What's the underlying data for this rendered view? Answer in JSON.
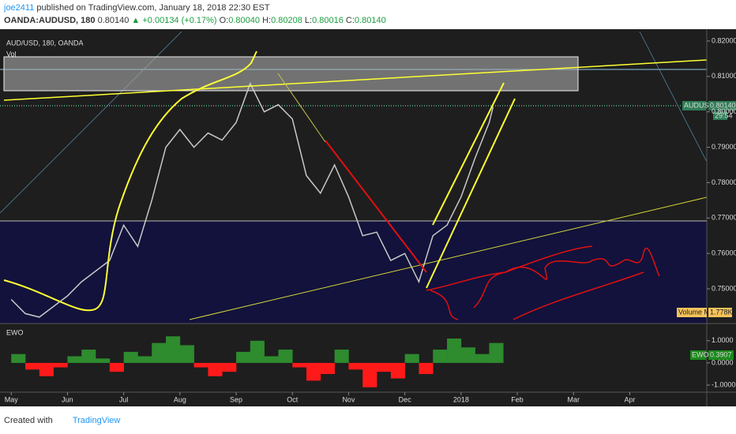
{
  "header": {
    "author": "joe2411",
    "published": "published on TradingView.com, January 18, 2018 22:30 EST",
    "symbol": "OANDA:AUDUSD, 180",
    "last": "0.80140",
    "change": "▲ +0.00134 (+0.17%)",
    "open_label": "O:",
    "open": "0.80040",
    "high_label": "H:",
    "high": "0.80208",
    "low_label": "L:",
    "low": "0.80016",
    "close_label": "C:",
    "close": "0.80140"
  },
  "footer": {
    "created": "Created with",
    "brand": "TradingView"
  },
  "chart_data": [
    {
      "type": "line",
      "title": "AUD/USD, 180, OANDA",
      "subtitle": "Vol",
      "x": [
        0,
        0.25,
        0.5,
        0.75,
        1,
        1.25,
        1.5,
        1.75,
        2,
        2.25,
        2.5,
        2.75,
        3,
        3.25,
        3.5,
        3.75,
        4,
        4.25,
        4.5,
        4.75,
        5,
        5.25,
        5.5,
        5.75,
        6,
        6.25,
        6.5,
        6.75,
        7,
        7.25,
        7.5,
        7.75,
        8,
        8.25,
        8.5,
        8.57
      ],
      "series": [
        {
          "name": "AUDUSD",
          "color": "#c8c8c8",
          "values": [
            0.747,
            0.743,
            0.742,
            0.745,
            0.748,
            0.752,
            0.755,
            0.758,
            0.768,
            0.762,
            0.775,
            0.79,
            0.795,
            0.79,
            0.794,
            0.792,
            0.797,
            0.808,
            0.8,
            0.802,
            0.798,
            0.782,
            0.777,
            0.785,
            0.776,
            0.765,
            0.766,
            0.758,
            0.76,
            0.752,
            0.765,
            0.768,
            0.776,
            0.787,
            0.797,
            0.8014
          ]
        }
      ],
      "last_label": "0.80140",
      "countdown": "29:54",
      "volume_ma_label": "Volume MA",
      "volume_ma": "1.778K",
      "xlim": [
        -0.2,
        12.37
      ],
      "ylim": [
        0.7402,
        0.82267
      ],
      "yticks": [
        {
          "value": 0.82,
          "label": "0.82000"
        },
        {
          "value": 0.81,
          "label": "0.81000"
        },
        {
          "value": 0.8,
          "label": "0.80000"
        },
        {
          "value": 0.79,
          "label": "0.79000"
        },
        {
          "value": 0.78,
          "label": "0.78000"
        },
        {
          "value": 0.77,
          "label": "0.77000"
        },
        {
          "value": 0.76,
          "label": "0.76000"
        },
        {
          "value": 0.75,
          "label": "0.75000"
        }
      ]
    },
    {
      "type": "bar",
      "title": "EWO",
      "series_name": "EWO",
      "last_label": "0.3907",
      "x": [
        0,
        0.25,
        0.5,
        0.75,
        1,
        1.25,
        1.5,
        1.75,
        2,
        2.25,
        2.5,
        2.75,
        3,
        3.25,
        3.5,
        3.75,
        4,
        4.25,
        4.5,
        4.75,
        5,
        5.25,
        5.5,
        5.75,
        6,
        6.25,
        6.5,
        6.75,
        7,
        7.25,
        7.5,
        7.75,
        8,
        8.25,
        8.5,
        8.57
      ],
      "values": [
        0.4,
        -0.3,
        -0.6,
        -0.2,
        0.3,
        0.6,
        0.2,
        -0.4,
        0.5,
        0.3,
        0.9,
        1.2,
        0.8,
        -0.2,
        -0.6,
        -0.4,
        0.5,
        1.0,
        0.3,
        0.6,
        -0.2,
        -0.8,
        -0.5,
        0.6,
        -0.3,
        -1.1,
        -0.4,
        -0.7,
        0.4,
        -0.5,
        0.6,
        1.1,
        0.7,
        0.4,
        0.9,
        0.39
      ],
      "color": "#2e8b2e",
      "negative_color": "#ff1a1a",
      "xlim": [
        -0.2,
        12.37
      ],
      "xticks": [
        {
          "value": 0,
          "label": "May"
        },
        {
          "value": 1,
          "label": "Jun"
        },
        {
          "value": 2,
          "label": "Jul"
        },
        {
          "value": 3,
          "label": "Aug"
        },
        {
          "value": 4,
          "label": "Sep"
        },
        {
          "value": 5,
          "label": "Oct"
        },
        {
          "value": 6,
          "label": "Nov"
        },
        {
          "value": 7,
          "label": "Dec"
        },
        {
          "value": 8,
          "label": "2018"
        },
        {
          "value": 9,
          "label": "Feb"
        },
        {
          "value": 10,
          "label": "Mar"
        },
        {
          "value": 11,
          "label": "Apr"
        }
      ],
      "ylim": [
        -1.32,
        1.67
      ],
      "yticks": [
        {
          "value": 1,
          "label": "1.0000"
        },
        {
          "value": 0,
          "label": "0.0000"
        },
        {
          "value": -1,
          "label": "-1.0000"
        }
      ]
    }
  ]
}
